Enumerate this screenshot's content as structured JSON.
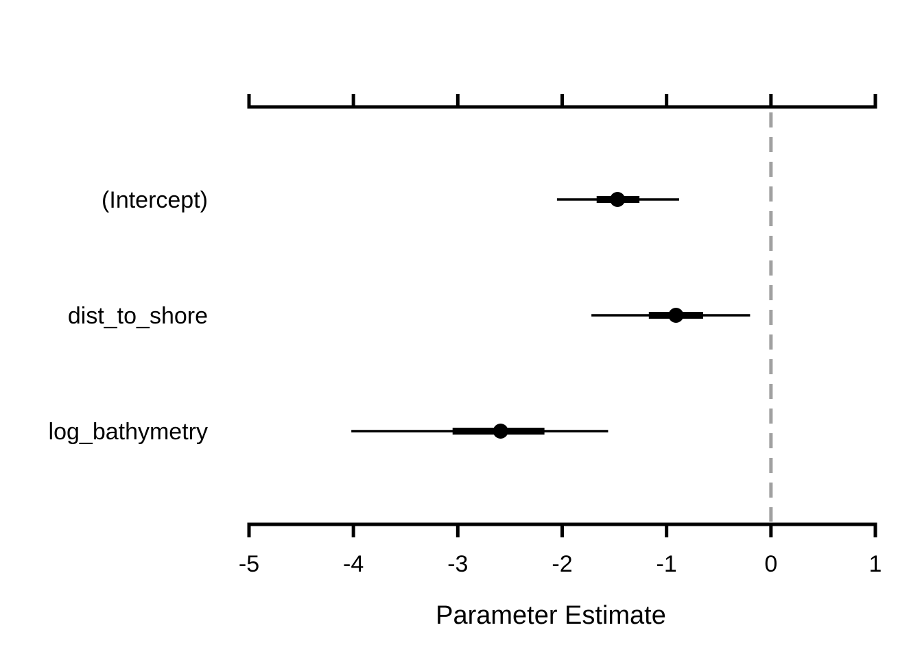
{
  "chart_data": {
    "type": "coefficient-interval",
    "xlabel": "Parameter Estimate",
    "xlim": [
      -5,
      1
    ],
    "xticks": [
      "-5",
      "-4",
      "-3",
      "-2",
      "-1",
      "0",
      "1"
    ],
    "reference_line": {
      "x": 0,
      "style": "dashed",
      "color": "#a0a0a0"
    },
    "parameters": [
      {
        "label": "(Intercept)",
        "estimate": -1.47,
        "inner": [
          -1.67,
          -1.26
        ],
        "outer": [
          -2.05,
          -0.88
        ]
      },
      {
        "label": "dist_to_shore",
        "estimate": -0.91,
        "inner": [
          -1.17,
          -0.65
        ],
        "outer": [
          -1.72,
          -0.2
        ]
      },
      {
        "label": "log_bathymetry",
        "estimate": -2.59,
        "inner": [
          -3.05,
          -2.17
        ],
        "outer": [
          -4.02,
          -1.56
        ]
      }
    ],
    "colors": {
      "line": "#000000",
      "point": "#000000",
      "reference": "#a0a0a0"
    }
  }
}
